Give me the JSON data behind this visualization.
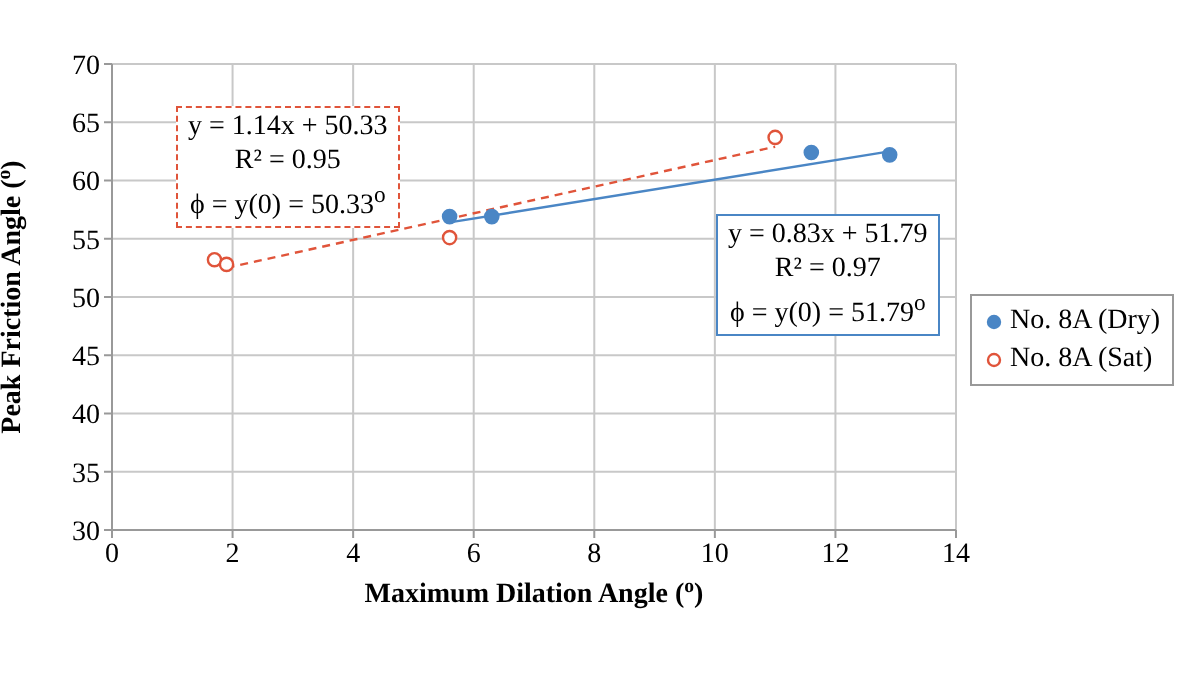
{
  "chart_data": {
    "type": "scatter",
    "xlabel": "Maximum Dilation Angle ($^{o}$)",
    "ylabel": "Peak Friction Angle ($^{o}$)",
    "xlim": [
      0,
      14
    ],
    "xticks": [
      0,
      2,
      4,
      6,
      8,
      10,
      12,
      14
    ],
    "ylim": [
      30,
      70
    ],
    "yticks": [
      30,
      35,
      40,
      45,
      50,
      55,
      60,
      65,
      70
    ],
    "grid": true,
    "legend": "right",
    "marker": "circle",
    "series": [
      {
        "name": "No. 8A (Dry)",
        "color": "#4a86c5",
        "x": [
          5.6,
          6.3,
          11.6,
          12.9
        ],
        "values": [
          56.9,
          56.9,
          62.4,
          62.2
        ]
      },
      {
        "name": "No. 8A (Sat)",
        "color": "#e0543a",
        "x": [
          1.7,
          1.9,
          5.6,
          11.0
        ],
        "values": [
          53.2,
          52.8,
          55.1,
          63.7
        ]
      },
      {
        "type": "line",
        "color": "#4a86c5",
        "line_style": "solid",
        "marker": "none",
        "x": [
          5.6,
          12.9
        ],
        "values": [
          56.4,
          62.5
        ]
      },
      {
        "type": "line",
        "color": "#e0543a",
        "line_style": "dashed",
        "marker": "none",
        "x": [
          1.9,
          11.0
        ],
        "values": [
          52.5,
          62.9
        ]
      }
    ],
    "annotations": [
      "y = 1.14x + 50.33\nR² = 0.95\nϕ = y(0) = 50.33$^{o}$",
      "y = 0.83x + 51.79\nR² = 0.97\nϕ = y(0) = 51.79$^{o}$"
    ]
  }
}
